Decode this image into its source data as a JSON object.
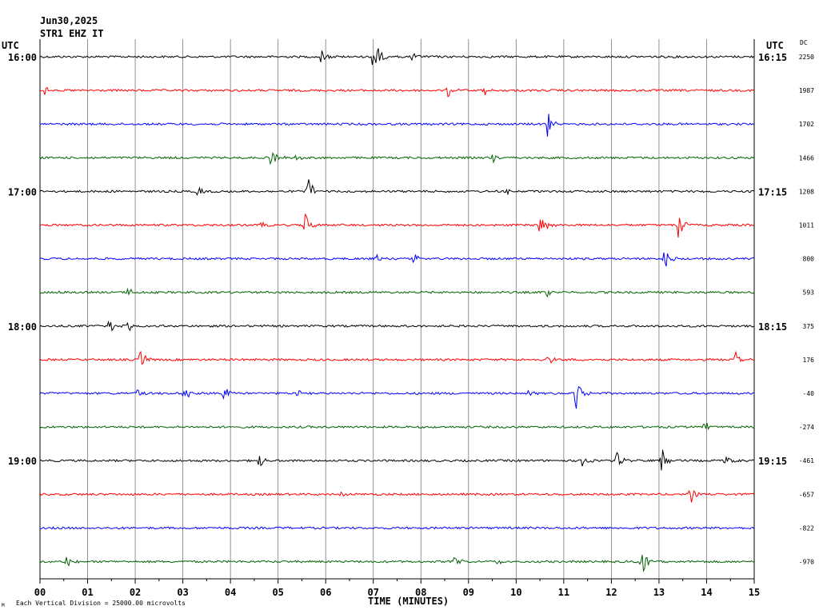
{
  "header": {
    "date": "Jun30,2025",
    "station": "STR1 EHZ IT",
    "utc_left": "UTC",
    "utc_right": "UTC",
    "dc_label": "DC"
  },
  "footer": {
    "xlabel": "TIME (MINUTES)",
    "scale_note": "Each Vertical Division = 25000.00 microvolts",
    "small_mark": "M"
  },
  "chart_data": {
    "type": "line",
    "title": "STR1 EHZ IT",
    "xlabel": "TIME (MINUTES)",
    "ylabel": "",
    "xlim": [
      0,
      15
    ],
    "x_ticks": [
      "00",
      "01",
      "02",
      "03",
      "04",
      "05",
      "06",
      "07",
      "08",
      "09",
      "10",
      "11",
      "12",
      "13",
      "14",
      "15"
    ],
    "trace_colors": [
      "#000000",
      "#ff0000",
      "#0000ff",
      "#006400"
    ],
    "left_time_labels": [
      {
        "row": 0,
        "text": "16:00"
      },
      {
        "row": 4,
        "text": "17:00"
      },
      {
        "row": 8,
        "text": "18:00"
      },
      {
        "row": 12,
        "text": "19:00"
      }
    ],
    "right_time_labels": [
      {
        "row": 0,
        "text": "16:15"
      },
      {
        "row": 4,
        "text": "17:15"
      },
      {
        "row": 8,
        "text": "18:15"
      },
      {
        "row": 12,
        "text": "19:15"
      }
    ],
    "dc_offsets": [
      "2250",
      "1987",
      "1702",
      "1466",
      "1208",
      "1011",
      "800",
      "593",
      "375",
      "176",
      "-40",
      "-274",
      "-461",
      "-657",
      "-822",
      "-970"
    ],
    "traces": [
      {
        "row": 0,
        "events": [
          {
            "t": 5.9,
            "amp": 0.5
          },
          {
            "t": 7.0,
            "amp": 1.6
          },
          {
            "t": 7.8,
            "amp": 0.3
          }
        ]
      },
      {
        "row": 1,
        "events": [
          {
            "t": 0.1,
            "amp": 0.25
          },
          {
            "t": 8.55,
            "amp": 0.7
          },
          {
            "t": 9.3,
            "amp": 0.4
          }
        ]
      },
      {
        "row": 2,
        "events": [
          {
            "t": 10.65,
            "amp": 1.0
          }
        ]
      },
      {
        "row": 3,
        "events": [
          {
            "t": 4.85,
            "amp": 0.6
          },
          {
            "t": 5.35,
            "amp": 0.25
          },
          {
            "t": 9.5,
            "amp": 0.3
          }
        ]
      },
      {
        "row": 4,
        "events": [
          {
            "t": 3.3,
            "amp": 0.3
          },
          {
            "t": 5.6,
            "amp": 1.2
          },
          {
            "t": 9.8,
            "amp": 0.2
          }
        ]
      },
      {
        "row": 5,
        "events": [
          {
            "t": 4.65,
            "amp": 0.3
          },
          {
            "t": 5.55,
            "amp": 0.9
          },
          {
            "t": 10.5,
            "amp": 1.1
          },
          {
            "t": 13.4,
            "amp": 0.9
          }
        ]
      },
      {
        "row": 6,
        "events": [
          {
            "t": 7.05,
            "amp": 0.3
          },
          {
            "t": 7.85,
            "amp": 0.5
          },
          {
            "t": 13.1,
            "amp": 0.8
          }
        ]
      },
      {
        "row": 7,
        "events": [
          {
            "t": 0.3,
            "amp": 0.2
          },
          {
            "t": 1.85,
            "amp": 0.5
          },
          {
            "t": 10.65,
            "amp": 0.5
          }
        ]
      },
      {
        "row": 8,
        "events": [
          {
            "t": 1.45,
            "amp": 0.6
          },
          {
            "t": 1.85,
            "amp": 0.3
          }
        ]
      },
      {
        "row": 9,
        "events": [
          {
            "t": 2.1,
            "amp": 0.8
          },
          {
            "t": 10.65,
            "amp": 0.4
          },
          {
            "t": 14.6,
            "amp": 0.6
          }
        ]
      },
      {
        "row": 10,
        "events": [
          {
            "t": 2.05,
            "amp": 0.3
          },
          {
            "t": 3.0,
            "amp": 0.6
          },
          {
            "t": 3.85,
            "amp": 0.5
          },
          {
            "t": 5.4,
            "amp": 0.25
          },
          {
            "t": 10.25,
            "amp": 0.2
          },
          {
            "t": 11.25,
            "amp": 1.5
          }
        ]
      },
      {
        "row": 11,
        "events": [
          {
            "t": 13.9,
            "amp": 0.6
          }
        ]
      },
      {
        "row": 12,
        "events": [
          {
            "t": 4.6,
            "amp": 0.5
          },
          {
            "t": 11.4,
            "amp": 0.5
          },
          {
            "t": 12.1,
            "amp": 0.6
          },
          {
            "t": 13.05,
            "amp": 0.9
          },
          {
            "t": 14.35,
            "amp": 0.6
          }
        ]
      },
      {
        "row": 13,
        "events": [
          {
            "t": 6.3,
            "amp": 0.15
          },
          {
            "t": 13.65,
            "amp": 0.6
          }
        ]
      },
      {
        "row": 14,
        "events": []
      },
      {
        "row": 15,
        "events": [
          {
            "t": 0.55,
            "amp": 0.5
          },
          {
            "t": 8.7,
            "amp": 0.35
          },
          {
            "t": 9.6,
            "amp": 0.2
          },
          {
            "t": 12.6,
            "amp": 1.3
          }
        ]
      }
    ]
  }
}
